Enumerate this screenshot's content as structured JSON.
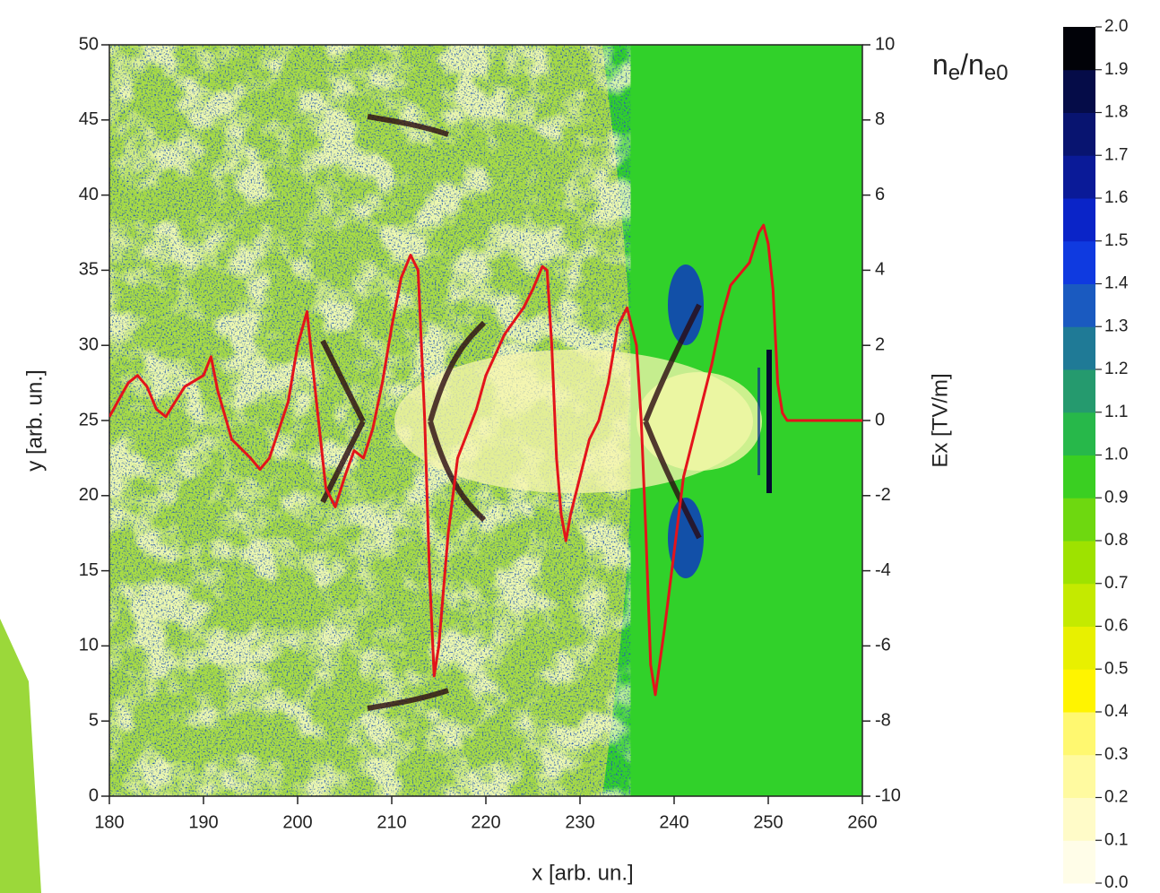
{
  "chart_data": {
    "type": "line",
    "xlabel": "x [arb. un.]",
    "ylabel": "y [arb. un.]",
    "y2label": "Ex [TV/m]",
    "xlim": [
      180,
      260
    ],
    "xticks": [
      180,
      190,
      200,
      210,
      220,
      230,
      240,
      250,
      260
    ],
    "ylim": [
      0,
      50
    ],
    "yticks": [
      0,
      5,
      10,
      15,
      20,
      25,
      30,
      35,
      40,
      45,
      50
    ],
    "y2lim": [
      -10,
      10
    ],
    "y2ticks": [
      -10,
      -8,
      -6,
      -4,
      -2,
      0,
      2,
      4,
      6,
      8,
      10
    ],
    "series": [
      {
        "color": "#e3141b",
        "axis": "y2",
        "x": [
          180,
          182,
          183,
          184,
          185,
          186,
          187,
          188,
          190,
          190.8,
          191.5,
          193,
          195,
          196,
          197,
          199,
          200,
          201,
          202,
          203,
          204,
          205,
          206,
          207,
          208,
          209,
          210,
          211,
          212,
          212.8,
          213.5,
          214,
          214.5,
          215,
          216,
          217,
          219,
          220,
          222,
          224,
          225,
          226,
          226.5,
          227,
          227.5,
          228,
          228.5,
          229,
          230,
          231,
          232,
          233,
          234,
          235,
          236,
          236.5,
          237,
          237.5,
          238,
          239,
          240,
          241,
          242,
          243,
          244,
          245,
          246,
          247,
          248,
          249,
          249.5,
          250,
          250.5,
          251,
          251.5,
          252,
          260
        ],
        "values": [
          0.1,
          1.0,
          1.2,
          0.9,
          0.3,
          0.1,
          0.5,
          0.9,
          1.2,
          1.7,
          0.8,
          -0.5,
          -1.0,
          -1.3,
          -1.0,
          0.5,
          2.0,
          2.9,
          0.5,
          -1.8,
          -2.3,
          -1.5,
          -0.8,
          -1.0,
          -0.2,
          1.0,
          2.5,
          3.8,
          4.4,
          4.0,
          0,
          -4.0,
          -6.8,
          -6.0,
          -3.0,
          -1.0,
          0.3,
          1.2,
          2.3,
          3.0,
          3.5,
          4.1,
          4.0,
          2.0,
          -1.0,
          -2.5,
          -3.2,
          -2.5,
          -1.5,
          -0.5,
          0,
          1.0,
          2.5,
          3.0,
          2.0,
          0,
          -3.0,
          -6.5,
          -7.3,
          -5.5,
          -3.5,
          -1.5,
          -0.5,
          0.5,
          1.5,
          2.7,
          3.6,
          3.9,
          4.2,
          5.0,
          5.2,
          4.7,
          3.5,
          1.0,
          0.2,
          0,
          0
        ]
      }
    ],
    "colorbar": {
      "label_parts": [
        {
          "text": "n"
        },
        {
          "text": "e",
          "sub": true
        },
        {
          "text": "/"
        },
        {
          "text": "n"
        },
        {
          "text": "e0",
          "sub": true
        }
      ],
      "lim": [
        0,
        2
      ],
      "ticks": [
        {
          "value": 0,
          "label": "0.0"
        },
        0.1,
        0.2,
        0.3,
        0.4,
        0.5,
        0.6,
        0.7,
        0.8,
        0.9,
        {
          "value": 1,
          "label": "1.0"
        },
        1.1,
        1.2,
        1.3,
        1.4,
        1.5,
        1.6,
        1.7,
        1.8,
        1.9,
        {
          "value": 2,
          "label": "2.0"
        }
      ],
      "colors": [
        "#fffde8",
        "#fffbc8",
        "#fffaa0",
        "#fff870",
        "#fff400",
        "#e8f000",
        "#c4ea00",
        "#9ee200",
        "#6ed810",
        "#3acf22",
        "#27b84a",
        "#259a6e",
        "#1f7a96",
        "#1a5ac0",
        "#0f3ae0",
        "#0a24c8",
        "#0a1a98",
        "#081470",
        "#050c48",
        "#010208"
      ]
    }
  }
}
